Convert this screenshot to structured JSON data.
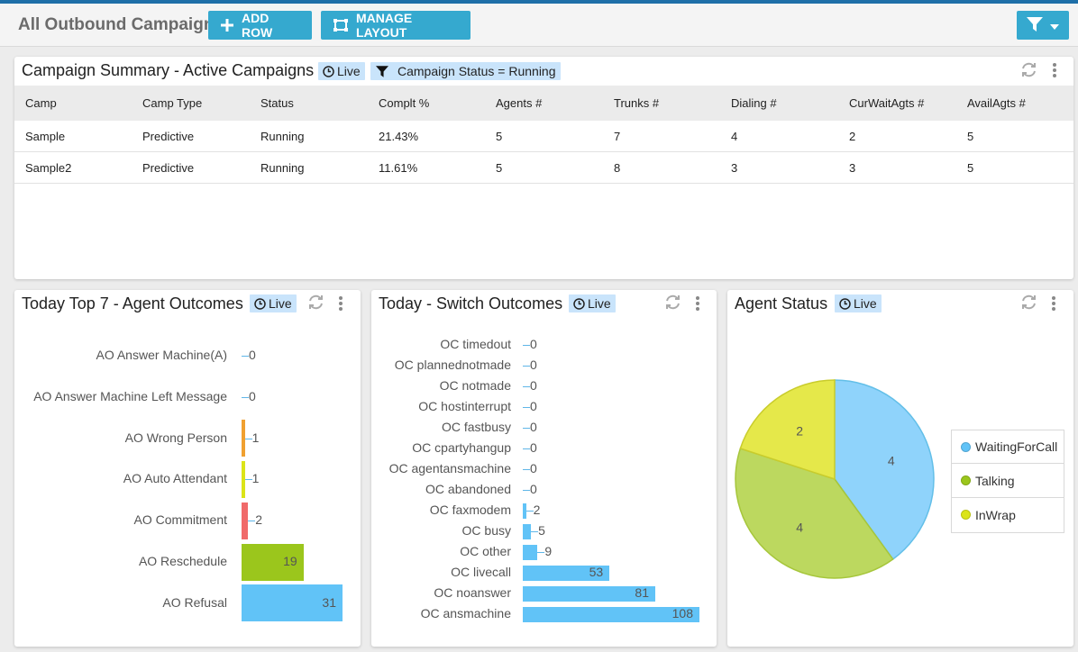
{
  "header": {
    "title": "All Outbound Campaigns",
    "add_row_label": "ADD ROW",
    "manage_layout_label": "MANAGE LAYOUT"
  },
  "colors": {
    "accent": "#35a9cf",
    "badge": "#c9e4fb",
    "blue": "#61c3f7",
    "green": "#9bc61c",
    "yellow": "#dbe418",
    "orange": "#f0a030",
    "red": "#f06a6a"
  },
  "campaign_summary": {
    "title": "Campaign Summary - Active Campaigns",
    "live_label": "Live",
    "filter_label": "Campaign Status = Running",
    "columns": [
      "Camp",
      "Camp Type",
      "Status",
      "Complt %",
      "Agents #",
      "Trunks #",
      "Dialing #",
      "CurWaitAgts #",
      "AvailAgts #"
    ],
    "rows": [
      [
        "Sample",
        "Predictive",
        "Running",
        "21.43%",
        "5",
        "7",
        "4",
        "2",
        "5"
      ],
      [
        "Sample2",
        "Predictive",
        "Running",
        "11.61%",
        "5",
        "8",
        "3",
        "3",
        "5"
      ]
    ]
  },
  "agent_outcomes": {
    "title": "Today Top 7 - Agent Outcomes",
    "live_label": "Live",
    "chart_data": {
      "type": "bar",
      "orientation": "horizontal",
      "categories": [
        "AO Answer Machine(A)",
        "AO Answer Machine Left Message",
        "AO Wrong Person",
        "AO Auto Attendant",
        "AO Commitment",
        "AO Reschedule",
        "AO Refusal"
      ],
      "values": [
        0,
        0,
        1,
        1,
        2,
        19,
        31
      ],
      "colors": [
        "#61c3f7",
        "#61c3f7",
        "#f0a030",
        "#dbe418",
        "#f06a6a",
        "#9bc61c",
        "#61c3f7"
      ],
      "xlim": [
        0,
        31
      ]
    }
  },
  "switch_outcomes": {
    "title": "Today - Switch Outcomes",
    "live_label": "Live",
    "chart_data": {
      "type": "bar",
      "orientation": "horizontal",
      "categories": [
        "OC timedout",
        "OC plannednotmade",
        "OC notmade",
        "OC hostinterrupt",
        "OC fastbusy",
        "OC cpartyhangup",
        "OC agentansmachine",
        "OC abandoned",
        "OC faxmodem",
        "OC busy",
        "OC other",
        "OC livecall",
        "OC noanswer",
        "OC ansmachine"
      ],
      "values": [
        0,
        0,
        0,
        0,
        0,
        0,
        0,
        0,
        2,
        5,
        9,
        53,
        81,
        108
      ],
      "color": "#61c3f7",
      "xlim": [
        0,
        108
      ]
    }
  },
  "agent_status": {
    "title": "Agent Status",
    "live_label": "Live",
    "chart_data": {
      "type": "pie",
      "categories": [
        "WaitingForCall",
        "Talking",
        "InWrap"
      ],
      "values": [
        4,
        4,
        2
      ],
      "colors": [
        "#8fd3fb",
        "#bcd85f",
        "#e5e84a"
      ]
    }
  }
}
